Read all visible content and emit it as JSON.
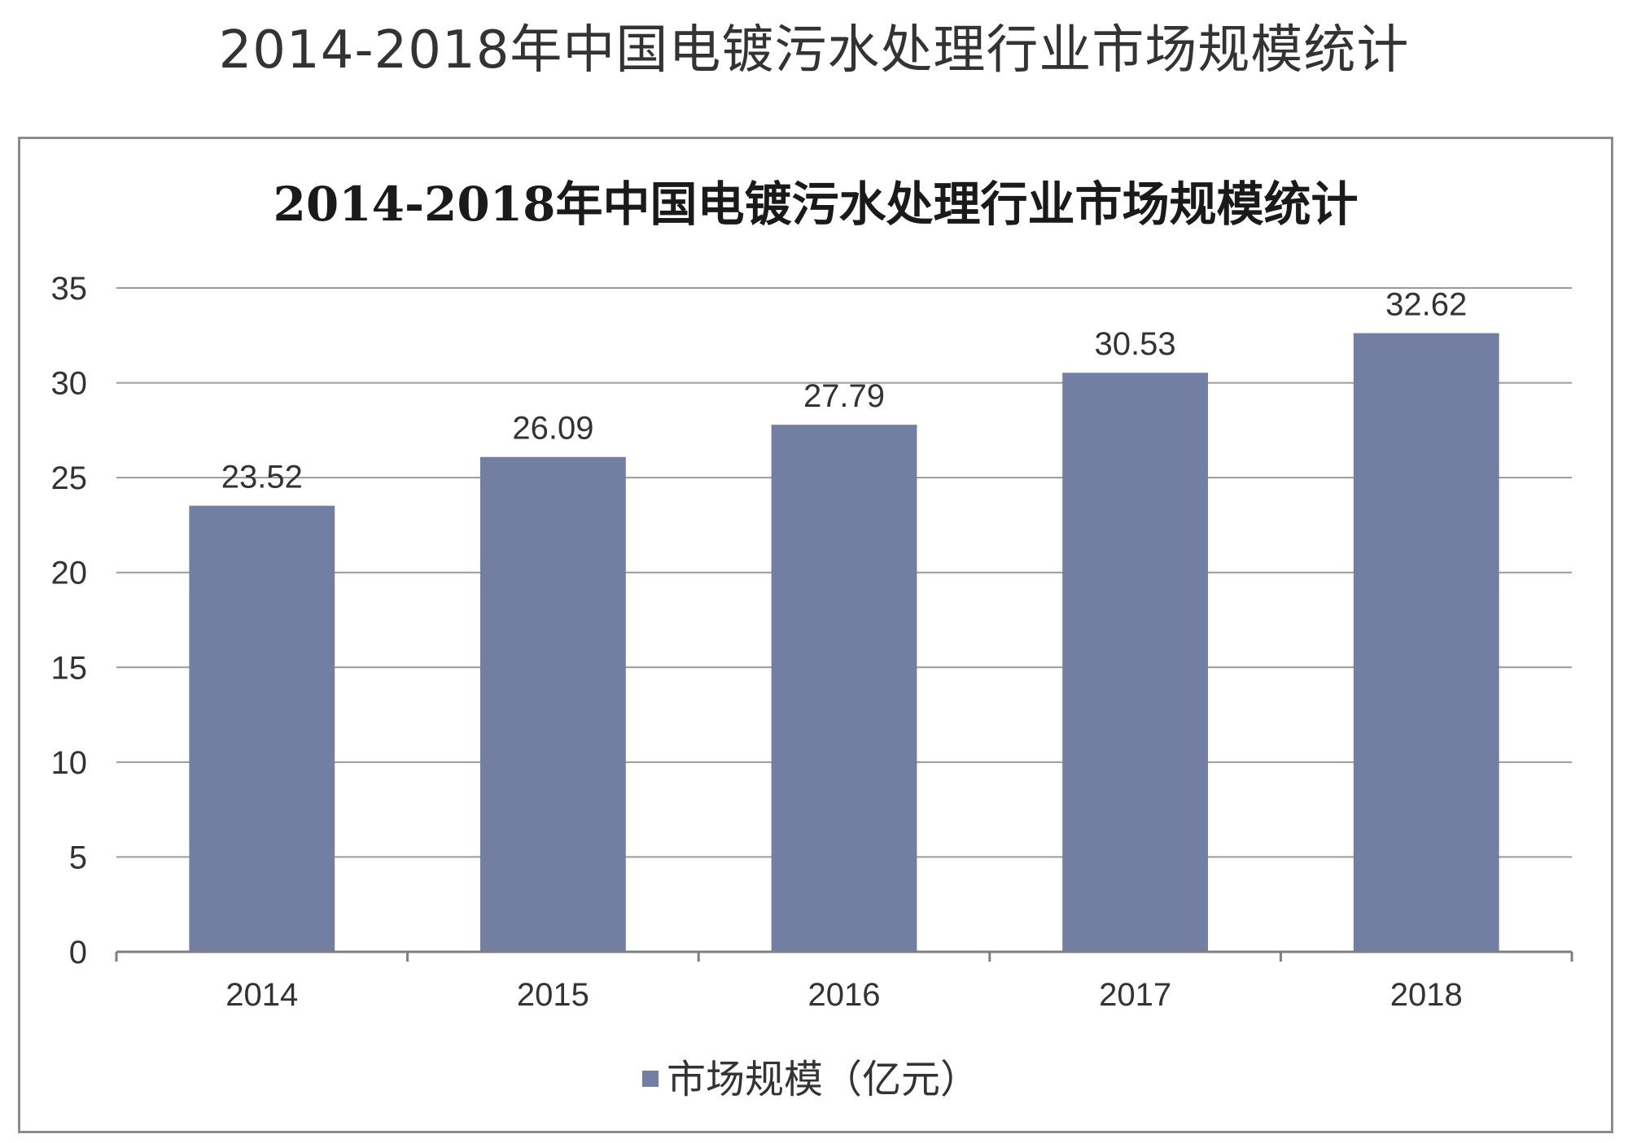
{
  "page_title": "2014-2018年中国电镀污水处理行业市场规模统计",
  "chart_data": {
    "type": "bar",
    "title": "2014-2018年中国电镀污水处理行业市场规模统计",
    "categories": [
      "2014",
      "2015",
      "2016",
      "2017",
      "2018"
    ],
    "series": [
      {
        "name": "市场规模（亿元）",
        "values": [
          23.52,
          26.09,
          27.79,
          30.53,
          32.62
        ],
        "data_labels": [
          "23.52",
          "26.09",
          "27.79",
          "30.53",
          "32.62"
        ]
      }
    ],
    "yticks": [
      "0",
      "5",
      "10",
      "15",
      "20",
      "25",
      "30",
      "35"
    ],
    "ytick_values": [
      0,
      5,
      10,
      15,
      20,
      25,
      30,
      35
    ],
    "xlabel": "",
    "ylabel": "",
    "ylim": [
      0,
      35
    ],
    "grid": true,
    "legend_position": "bottom",
    "colors": {
      "bar": "#727fa3",
      "grid": "#9a9a9a",
      "axis": "#7f7f7f",
      "text": "#333333"
    }
  }
}
